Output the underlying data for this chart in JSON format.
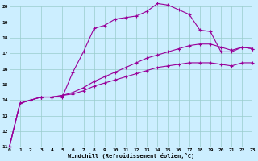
{
  "line1_x": [
    0,
    1,
    2,
    3,
    4,
    5,
    6,
    7,
    8,
    9,
    10,
    11,
    12,
    13,
    14,
    15,
    16,
    17,
    18,
    19,
    20,
    21,
    22,
    23
  ],
  "line1_y": [
    11.0,
    13.8,
    14.0,
    14.2,
    14.2,
    14.2,
    15.8,
    17.1,
    18.6,
    18.8,
    19.2,
    19.3,
    19.4,
    19.7,
    20.2,
    20.1,
    19.8,
    19.5,
    18.5,
    18.4,
    17.1,
    17.1,
    17.4,
    17.3
  ],
  "line2_x": [
    0,
    1,
    2,
    3,
    4,
    5,
    6,
    7,
    8,
    9,
    10,
    11,
    12,
    13,
    14,
    15,
    16,
    17,
    18,
    19,
    20,
    21,
    22,
    23
  ],
  "line2_y": [
    11.0,
    13.8,
    14.0,
    14.2,
    14.2,
    14.3,
    14.5,
    14.8,
    15.2,
    15.5,
    15.8,
    16.1,
    16.4,
    16.7,
    16.9,
    17.1,
    17.3,
    17.5,
    17.6,
    17.6,
    17.4,
    17.2,
    17.4,
    17.3
  ],
  "line3_x": [
    0,
    1,
    2,
    3,
    4,
    5,
    6,
    7,
    8,
    9,
    10,
    11,
    12,
    13,
    14,
    15,
    16,
    17,
    18,
    19,
    20,
    21,
    22,
    23
  ],
  "line3_y": [
    11.0,
    13.8,
    14.0,
    14.2,
    14.2,
    14.3,
    14.4,
    14.6,
    14.9,
    15.1,
    15.3,
    15.5,
    15.7,
    15.9,
    16.1,
    16.2,
    16.3,
    16.4,
    16.4,
    16.4,
    16.3,
    16.2,
    16.4,
    16.4
  ],
  "line_color": "#990099",
  "marker": "+",
  "markersize": 3,
  "linewidth": 0.8,
  "bg_color": "#cceeff",
  "grid_color": "#99cccc",
  "xlabel": "Windchill (Refroidissement éolien,°C)",
  "xlim": [
    0,
    23
  ],
  "ylim": [
    11,
    20
  ],
  "xticks": [
    0,
    1,
    2,
    3,
    4,
    5,
    6,
    7,
    8,
    9,
    10,
    11,
    12,
    13,
    14,
    15,
    16,
    17,
    18,
    19,
    20,
    21,
    22,
    23
  ],
  "yticks": [
    11,
    12,
    13,
    14,
    15,
    16,
    17,
    18,
    19,
    20
  ]
}
